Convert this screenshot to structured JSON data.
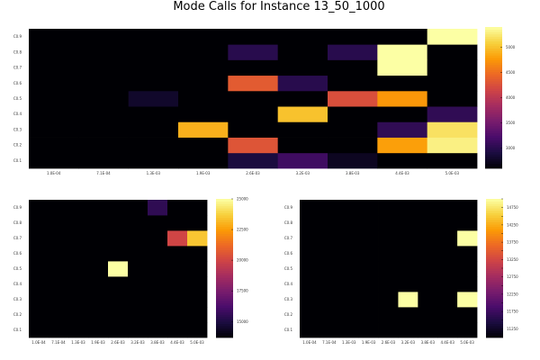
{
  "figure_title": "Mode Calls for Instance 13_50_1000",
  "colormap": [
    "#000004",
    "#1b0c41",
    "#4a0c6b",
    "#781c6d",
    "#a52c60",
    "#cf4446",
    "#ed6925",
    "#fb9b06",
    "#f7d13d",
    "#fcffa4"
  ],
  "chart_data": [
    {
      "type": "heatmap",
      "title": "Mode Calls for Instance 13_50_1000",
      "x_tick_labels": [
        "1.0E-04",
        "7.1E-04",
        "1.3E-03",
        "1.9E-03",
        "2.6E-03",
        "3.2E-03",
        "3.8E-03",
        "4.4E-03",
        "5.0E-03"
      ],
      "y_tick_labels": [
        "C0.1",
        "C0.2",
        "C0.3",
        "C0.4",
        "C0.5",
        "C0.6",
        "C0.7",
        "C0.8",
        "C0.9"
      ],
      "colorbar_ticks": [
        3000,
        3500,
        4000,
        4500,
        5000
      ],
      "clim": [
        2600,
        5400
      ],
      "z": [
        [
          2600,
          2600,
          2600,
          2600,
          2900,
          3150,
          2750,
          2600,
          2600
        ],
        [
          2600,
          2600,
          2600,
          2600,
          4300,
          2600,
          2600,
          4800,
          5300
        ],
        [
          2600,
          2600,
          2600,
          4900,
          2600,
          2600,
          2600,
          3050,
          5200
        ],
        [
          2600,
          2600,
          2600,
          2600,
          2600,
          5000,
          2600,
          2600,
          3050
        ],
        [
          2600,
          2600,
          2800,
          2600,
          2600,
          2600,
          4250,
          4750,
          2600
        ],
        [
          2600,
          2600,
          2600,
          2600,
          4350,
          3000,
          2600,
          2600,
          2600
        ],
        [
          2600,
          2600,
          2600,
          2600,
          2600,
          2600,
          2600,
          5400,
          2600
        ],
        [
          2600,
          2600,
          2600,
          2600,
          3000,
          2600,
          3000,
          5400,
          2600
        ],
        [
          2600,
          2600,
          2600,
          2600,
          2600,
          2600,
          2600,
          2600,
          5400
        ]
      ]
    },
    {
      "type": "heatmap",
      "title": "",
      "x_tick_labels": [
        "1.0E-04",
        "7.1E-04",
        "1.3E-03",
        "1.9E-03",
        "2.6E-03",
        "3.2E-03",
        "3.8E-03",
        "4.4E-03",
        "5.0E-03"
      ],
      "y_tick_labels": [
        "C0.1",
        "C0.2",
        "C0.3",
        "C0.4",
        "C0.5",
        "C0.6",
        "C0.7",
        "C0.8",
        "C0.9"
      ],
      "colorbar_ticks": [
        15000,
        17500,
        20000,
        22500,
        25000
      ],
      "clim": [
        13700,
        25000
      ],
      "z": [
        [
          13700,
          13700,
          13700,
          13700,
          13700,
          13700,
          13700,
          13700,
          13700
        ],
        [
          13700,
          13700,
          13700,
          13700,
          13700,
          13700,
          13700,
          13700,
          13700
        ],
        [
          13700,
          13700,
          13700,
          13700,
          13700,
          13700,
          13700,
          13700,
          13700
        ],
        [
          13700,
          13700,
          13700,
          13700,
          13700,
          13700,
          13700,
          13700,
          13700
        ],
        [
          13700,
          13700,
          13700,
          13700,
          25000,
          13700,
          13700,
          13700,
          13700
        ],
        [
          13700,
          13700,
          13700,
          13700,
          13700,
          13700,
          13700,
          13700,
          13700
        ],
        [
          13700,
          13700,
          13700,
          13700,
          13700,
          13700,
          13700,
          20000,
          23500
        ],
        [
          13700,
          13700,
          13700,
          13700,
          13700,
          13700,
          13700,
          13700,
          13700
        ],
        [
          13700,
          13700,
          13700,
          13700,
          13700,
          13700,
          15500,
          13700,
          13700
        ]
      ]
    },
    {
      "type": "heatmap",
      "title": "",
      "x_tick_labels": [
        "1.0E-04",
        "7.1E-04",
        "1.3E-03",
        "1.9E-03",
        "2.6E-03",
        "3.2E-03",
        "3.8E-03",
        "4.4E-03",
        "5.0E-03"
      ],
      "y_tick_labels": [
        "C0.1",
        "C0.2",
        "C0.3",
        "C0.4",
        "C0.5",
        "C0.6",
        "C0.7",
        "C0.8",
        "C0.9"
      ],
      "colorbar_ticks": [
        11250,
        11500,
        11750,
        12000,
        12250,
        12500,
        12750,
        13000,
        13250,
        13500,
        13750,
        14000,
        14250,
        14500,
        14750,
        15000
      ],
      "colorbar_tick_labels": [
        "11250",
        "11500",
        "11750",
        "12000",
        "12250",
        "12500",
        "12750",
        "13000",
        "13250",
        "13500",
        "13750",
        "14000",
        "14250",
        "14500",
        "14750",
        "15000"
      ],
      "colorbar_label_every": 2,
      "clim": [
        11000,
        15000
      ],
      "z": [
        [
          11000,
          11000,
          11000,
          11000,
          11000,
          11000,
          11000,
          11000,
          11000
        ],
        [
          11000,
          11000,
          11000,
          11000,
          11000,
          11000,
          11000,
          11000,
          11000
        ],
        [
          11000,
          11000,
          11000,
          11000,
          11000,
          15000,
          11000,
          11000,
          15000
        ],
        [
          11000,
          11000,
          11000,
          11000,
          11000,
          11000,
          11000,
          11000,
          11000
        ],
        [
          11000,
          11000,
          11000,
          11000,
          11000,
          11000,
          11000,
          11000,
          11000
        ],
        [
          11000,
          11000,
          11000,
          11000,
          11000,
          11000,
          11000,
          11000,
          11000
        ],
        [
          11000,
          11000,
          11000,
          11000,
          11000,
          11000,
          11000,
          11000,
          15000
        ],
        [
          11000,
          11000,
          11000,
          11000,
          11000,
          11000,
          11000,
          11000,
          11000
        ],
        [
          11000,
          11000,
          11000,
          11000,
          11000,
          11000,
          11000,
          11000,
          11000
        ]
      ]
    }
  ]
}
